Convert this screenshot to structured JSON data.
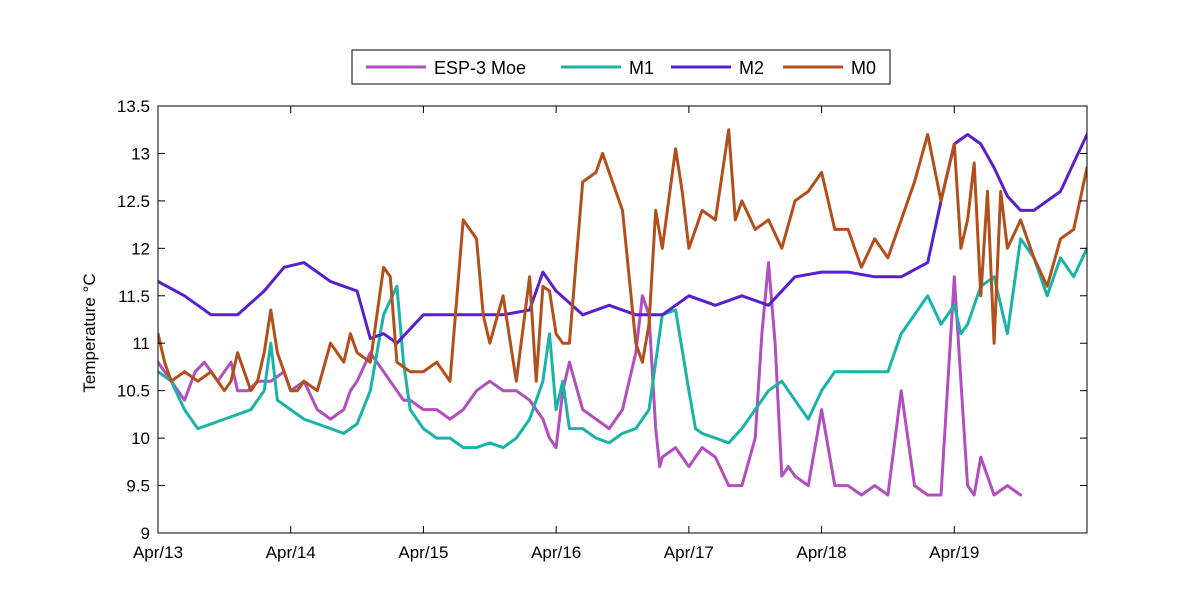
{
  "chart_data": {
    "type": "line",
    "ylabel": "Temperature °C",
    "xlabel": "",
    "x_start": "Apr/13",
    "x_tick_labels": [
      "Apr/13",
      "Apr/14",
      "Apr/15",
      "Apr/16",
      "Apr/17",
      "Apr/18",
      "Apr/19"
    ],
    "xlim_days": [
      0,
      7
    ],
    "ylim": [
      9,
      13.5
    ],
    "y_ticks": [
      9,
      9.5,
      10,
      10.5,
      11,
      11.5,
      12,
      12.5,
      13,
      13.5
    ],
    "y_tick_labels": [
      "9",
      "9.5",
      "10",
      "10.5",
      "11",
      "11.5",
      "12",
      "12.5",
      "13",
      "13.5"
    ],
    "grid": false,
    "legend_position": "top-center",
    "series": [
      {
        "name": "ESP-3 Moe",
        "color": "#b04fbd",
        "x": [
          0.0,
          0.1,
          0.2,
          0.28,
          0.35,
          0.45,
          0.55,
          0.6,
          0.68,
          0.75,
          0.85,
          0.95,
          1.0,
          1.1,
          1.2,
          1.3,
          1.4,
          1.45,
          1.5,
          1.6,
          1.7,
          1.8,
          1.85,
          1.9,
          2.0,
          2.1,
          2.2,
          2.3,
          2.4,
          2.5,
          2.6,
          2.7,
          2.8,
          2.9,
          2.95,
          3.0,
          3.05,
          3.1,
          3.2,
          3.3,
          3.4,
          3.5,
          3.6,
          3.65,
          3.7,
          3.75,
          3.78,
          3.8,
          3.9,
          4.0,
          4.1,
          4.2,
          4.3,
          4.4,
          4.5,
          4.55,
          4.6,
          4.65,
          4.7,
          4.75,
          4.8,
          4.9,
          5.0,
          5.1,
          5.2,
          5.3,
          5.4,
          5.5,
          5.6,
          5.7,
          5.8,
          5.9,
          6.0,
          6.05,
          6.1,
          6.15,
          6.2,
          6.3,
          6.4,
          6.5
        ],
        "values": [
          10.8,
          10.6,
          10.4,
          10.7,
          10.8,
          10.6,
          10.8,
          10.5,
          10.5,
          10.6,
          10.6,
          10.7,
          10.5,
          10.6,
          10.3,
          10.2,
          10.3,
          10.5,
          10.6,
          10.9,
          10.7,
          10.5,
          10.4,
          10.4,
          10.3,
          10.3,
          10.2,
          10.3,
          10.5,
          10.6,
          10.5,
          10.5,
          10.4,
          10.2,
          10.0,
          9.9,
          10.5,
          10.8,
          10.3,
          10.2,
          10.1,
          10.3,
          10.9,
          11.5,
          11.3,
          10.1,
          9.7,
          9.8,
          9.9,
          9.7,
          9.9,
          9.8,
          9.5,
          9.5,
          10.0,
          11.1,
          11.85,
          11.0,
          9.6,
          9.7,
          9.6,
          9.5,
          10.3,
          9.5,
          9.5,
          9.4,
          9.5,
          9.4,
          10.5,
          9.5,
          9.4,
          9.4,
          11.7,
          10.6,
          9.5,
          9.4,
          9.8,
          9.4,
          9.5,
          9.4
        ]
      },
      {
        "name": "M1",
        "color": "#1ab3a8",
        "x": [
          0.0,
          0.1,
          0.2,
          0.3,
          0.4,
          0.5,
          0.6,
          0.7,
          0.8,
          0.85,
          0.9,
          1.0,
          1.1,
          1.2,
          1.3,
          1.4,
          1.5,
          1.6,
          1.7,
          1.8,
          1.85,
          1.9,
          2.0,
          2.1,
          2.2,
          2.3,
          2.4,
          2.5,
          2.6,
          2.7,
          2.8,
          2.9,
          2.95,
          3.0,
          3.05,
          3.1,
          3.2,
          3.3,
          3.4,
          3.5,
          3.6,
          3.7,
          3.8,
          3.9,
          4.0,
          4.05,
          4.1,
          4.2,
          4.3,
          4.4,
          4.5,
          4.6,
          4.7,
          4.8,
          4.9,
          5.0,
          5.1,
          5.2,
          5.3,
          5.4,
          5.5,
          5.6,
          5.7,
          5.8,
          5.9,
          6.0,
          6.05,
          6.1,
          6.2,
          6.3,
          6.4,
          6.5,
          6.6,
          6.7,
          6.8,
          6.9,
          7.0
        ],
        "values": [
          10.7,
          10.6,
          10.3,
          10.1,
          10.15,
          10.2,
          10.25,
          10.3,
          10.5,
          11.0,
          10.4,
          10.3,
          10.2,
          10.15,
          10.1,
          10.05,
          10.15,
          10.5,
          11.3,
          11.6,
          10.8,
          10.3,
          10.1,
          10.0,
          10.0,
          9.9,
          9.9,
          9.95,
          9.9,
          10.0,
          10.2,
          10.6,
          11.1,
          10.3,
          10.6,
          10.1,
          10.1,
          10.0,
          9.95,
          10.05,
          10.1,
          10.3,
          11.3,
          11.35,
          10.5,
          10.1,
          10.05,
          10.0,
          9.95,
          10.1,
          10.3,
          10.5,
          10.6,
          10.4,
          10.2,
          10.5,
          10.7,
          10.7,
          10.7,
          10.7,
          10.7,
          11.1,
          11.3,
          11.5,
          11.2,
          11.4,
          11.1,
          11.2,
          11.6,
          11.7,
          11.1,
          12.1,
          11.9,
          11.5,
          11.9,
          11.7,
          12.0
        ]
      },
      {
        "name": "M2",
        "color": "#5a1fcc",
        "x": [
          0.0,
          0.2,
          0.4,
          0.6,
          0.8,
          0.95,
          1.1,
          1.3,
          1.4,
          1.5,
          1.6,
          1.7,
          1.8,
          2.0,
          2.2,
          2.4,
          2.6,
          2.8,
          2.9,
          3.0,
          3.2,
          3.4,
          3.6,
          3.8,
          4.0,
          4.2,
          4.4,
          4.6,
          4.8,
          5.0,
          5.2,
          5.4,
          5.6,
          5.8,
          5.9,
          6.0,
          6.1,
          6.2,
          6.3,
          6.4,
          6.5,
          6.6,
          6.7,
          6.8,
          6.9,
          7.0
        ],
        "values": [
          11.65,
          11.5,
          11.3,
          11.3,
          11.55,
          11.8,
          11.85,
          11.65,
          11.6,
          11.55,
          11.05,
          11.1,
          11.0,
          11.3,
          11.3,
          11.3,
          11.3,
          11.35,
          11.75,
          11.55,
          11.3,
          11.4,
          11.3,
          11.3,
          11.5,
          11.4,
          11.5,
          11.4,
          11.7,
          11.75,
          11.75,
          11.7,
          11.7,
          11.85,
          12.5,
          13.1,
          13.2,
          13.1,
          12.85,
          12.55,
          12.4,
          12.4,
          12.5,
          12.6,
          12.9,
          13.2
        ]
      },
      {
        "name": "M0",
        "color": "#b24f1a",
        "x": [
          0.0,
          0.05,
          0.1,
          0.2,
          0.3,
          0.4,
          0.5,
          0.55,
          0.6,
          0.7,
          0.75,
          0.8,
          0.85,
          0.9,
          1.0,
          1.05,
          1.1,
          1.2,
          1.3,
          1.4,
          1.45,
          1.5,
          1.6,
          1.7,
          1.75,
          1.8,
          1.9,
          2.0,
          2.1,
          2.2,
          2.3,
          2.4,
          2.45,
          2.5,
          2.6,
          2.7,
          2.8,
          2.85,
          2.9,
          2.95,
          3.0,
          3.05,
          3.1,
          3.2,
          3.3,
          3.35,
          3.4,
          3.5,
          3.6,
          3.65,
          3.7,
          3.75,
          3.8,
          3.9,
          3.95,
          4.0,
          4.1,
          4.2,
          4.3,
          4.35,
          4.4,
          4.5,
          4.6,
          4.7,
          4.8,
          4.9,
          5.0,
          5.1,
          5.2,
          5.3,
          5.4,
          5.5,
          5.6,
          5.7,
          5.8,
          5.9,
          6.0,
          6.05,
          6.1,
          6.15,
          6.2,
          6.25,
          6.3,
          6.35,
          6.4,
          6.5,
          6.6,
          6.7,
          6.8,
          6.9,
          7.0
        ],
        "values": [
          11.1,
          10.8,
          10.6,
          10.7,
          10.6,
          10.7,
          10.5,
          10.6,
          10.9,
          10.5,
          10.6,
          10.9,
          11.35,
          10.9,
          10.5,
          10.5,
          10.6,
          10.5,
          11.0,
          10.8,
          11.1,
          10.9,
          10.8,
          11.8,
          11.7,
          10.8,
          10.7,
          10.7,
          10.8,
          10.6,
          12.3,
          12.1,
          11.3,
          11.0,
          11.5,
          10.6,
          11.7,
          10.6,
          11.6,
          11.55,
          11.1,
          11.0,
          11.0,
          12.7,
          12.8,
          13.0,
          12.8,
          12.4,
          11.0,
          10.8,
          11.2,
          12.4,
          12.0,
          13.05,
          12.6,
          12.0,
          12.4,
          12.3,
          13.25,
          12.3,
          12.5,
          12.2,
          12.3,
          12.0,
          12.5,
          12.6,
          12.8,
          12.2,
          12.2,
          11.8,
          12.1,
          11.9,
          12.3,
          12.7,
          13.2,
          12.5,
          13.1,
          12.0,
          12.3,
          12.9,
          11.5,
          12.6,
          11.0,
          12.6,
          12.0,
          12.3,
          11.9,
          11.6,
          12.1,
          12.2,
          12.85
        ]
      }
    ]
  }
}
